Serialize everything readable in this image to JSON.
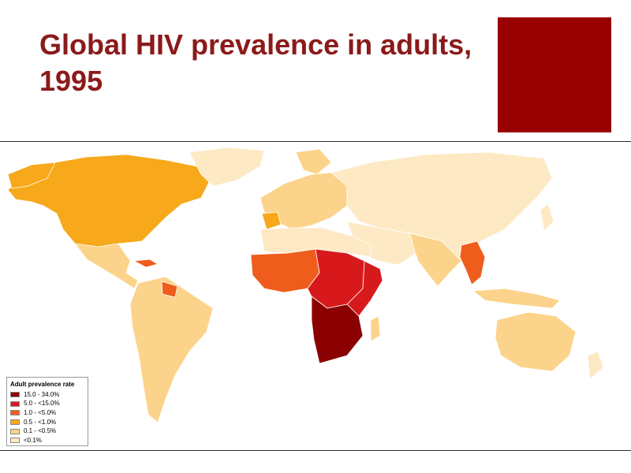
{
  "slide": {
    "title": "Global HIV prevalence in adults, 1995",
    "accent_color": "#990000"
  },
  "map": {
    "region": "world",
    "legend": {
      "title": "Adult prevalence rate",
      "classes": [
        {
          "label": "15.0 - 34.0%",
          "color": "#8b0000"
        },
        {
          "label": "5.0 - <15.0%",
          "color": "#d7191c"
        },
        {
          "label": "1.0 - <5.0%",
          "color": "#ef5d1c"
        },
        {
          "label": "0.5 - <1.0%",
          "color": "#f7a81b"
        },
        {
          "label": "0.1 - <0.5%",
          "color": "#fcd38a"
        },
        {
          "label": "<0.1%",
          "color": "#fde9c4"
        }
      ]
    },
    "regions": [
      {
        "name": "north-america",
        "class": "0.5 - <1.0%"
      },
      {
        "name": "greenland",
        "class": "<0.1%"
      },
      {
        "name": "central-america",
        "class": "0.1 - <0.5%"
      },
      {
        "name": "south-america",
        "class": "0.1 - <0.5%"
      },
      {
        "name": "europe",
        "class": "0.1 - <0.5%"
      },
      {
        "name": "russia-central-asia",
        "class": "<0.1%"
      },
      {
        "name": "north-africa",
        "class": "<0.1%"
      },
      {
        "name": "west-africa",
        "class": "1.0 - <5.0%"
      },
      {
        "name": "central-africa",
        "class": "5.0 - <15.0%"
      },
      {
        "name": "east-africa",
        "class": "5.0 - <15.0%"
      },
      {
        "name": "southern-africa",
        "class": "15.0 - 34.0%"
      },
      {
        "name": "middle-east",
        "class": "<0.1%"
      },
      {
        "name": "india",
        "class": "0.1 - <0.5%"
      },
      {
        "name": "southeast-asia",
        "class": "1.0 - <5.0%"
      },
      {
        "name": "australia",
        "class": "0.1 - <0.5%"
      }
    ]
  }
}
